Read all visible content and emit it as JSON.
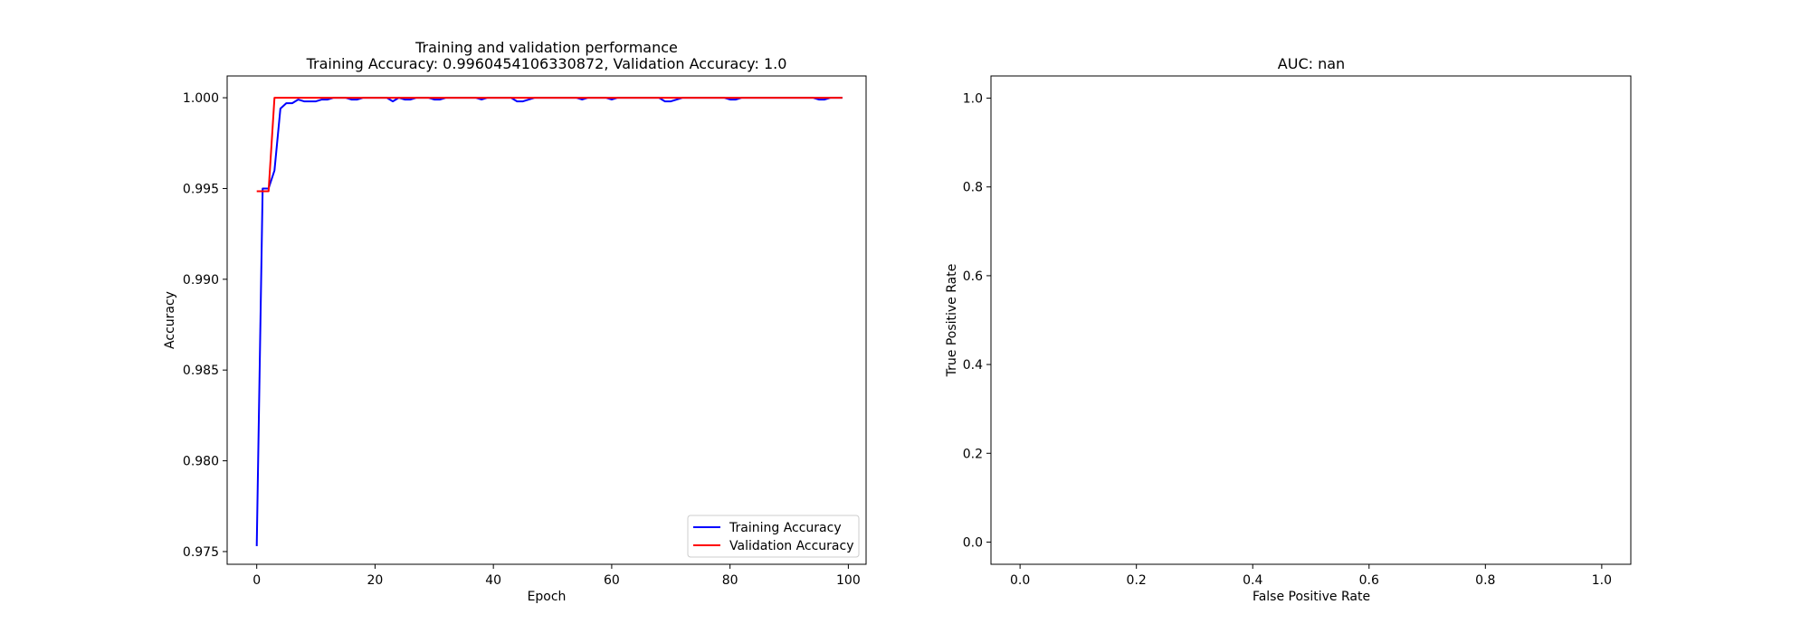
{
  "chart_data": [
    {
      "type": "line",
      "title": "Training and validation performance",
      "subtitle": "Training Accuracy: 0.9960454106330872, Validation Accuracy: 1.0",
      "xlabel": "Epoch",
      "ylabel": "Accuracy",
      "xlim": [
        -5,
        103
      ],
      "ylim": [
        0.9743,
        1.0012
      ],
      "xticks": [
        0,
        20,
        40,
        60,
        80,
        100
      ],
      "xtick_labels": [
        "0",
        "20",
        "40",
        "60",
        "80",
        "100"
      ],
      "yticks": [
        0.975,
        0.98,
        0.985,
        0.99,
        0.995,
        1.0
      ],
      "ytick_labels": [
        "0.975",
        "0.980",
        "0.985",
        "0.990",
        "0.995",
        "1.000"
      ],
      "grid": false,
      "legend_position": "lower-right",
      "series": [
        {
          "name": "Training Accuracy",
          "color": "#0000ff",
          "x": [
            0,
            1,
            2,
            3,
            4,
            5,
            6,
            7,
            8,
            9,
            10,
            11,
            12,
            13,
            14,
            15,
            16,
            17,
            18,
            19,
            20,
            21,
            22,
            23,
            24,
            25,
            26,
            27,
            28,
            29,
            30,
            31,
            32,
            33,
            34,
            35,
            36,
            37,
            38,
            39,
            40,
            41,
            42,
            43,
            44,
            45,
            46,
            47,
            48,
            49,
            50,
            51,
            52,
            53,
            54,
            55,
            56,
            57,
            58,
            59,
            60,
            61,
            62,
            63,
            64,
            65,
            66,
            67,
            68,
            69,
            70,
            71,
            72,
            73,
            74,
            75,
            76,
            77,
            78,
            79,
            80,
            81,
            82,
            83,
            84,
            85,
            86,
            87,
            88,
            89,
            90,
            91,
            92,
            93,
            94,
            95,
            96,
            97,
            98,
            99
          ],
          "y": [
            0.9753,
            0.995,
            0.995,
            0.996,
            0.9994,
            0.9997,
            0.9997,
            0.9999,
            0.9998,
            0.9998,
            0.9998,
            0.9999,
            0.9999,
            1.0,
            1.0,
            1.0,
            0.9999,
            0.9999,
            1.0,
            1.0,
            1.0,
            1.0,
            1.0,
            0.9998,
            1.0,
            0.9999,
            0.9999,
            1.0,
            1.0,
            1.0,
            0.9999,
            0.9999,
            1.0,
            1.0,
            1.0,
            1.0,
            1.0,
            1.0,
            0.9999,
            1.0,
            1.0,
            1.0,
            1.0,
            1.0,
            0.9998,
            0.9998,
            0.9999,
            1.0,
            1.0,
            1.0,
            1.0,
            1.0,
            1.0,
            1.0,
            1.0,
            0.9999,
            1.0,
            1.0,
            1.0,
            1.0,
            0.9999,
            1.0,
            1.0,
            1.0,
            1.0,
            1.0,
            1.0,
            1.0,
            1.0,
            0.9998,
            0.9998,
            0.9999,
            1.0,
            1.0,
            1.0,
            1.0,
            1.0,
            1.0,
            1.0,
            1.0,
            0.9999,
            0.9999,
            1.0,
            1.0,
            1.0,
            1.0,
            1.0,
            1.0,
            1.0,
            1.0,
            1.0,
            1.0,
            1.0,
            1.0,
            1.0,
            0.9999,
            0.9999,
            1.0,
            1.0,
            1.0
          ]
        },
        {
          "name": "Validation Accuracy",
          "color": "#ff0000",
          "x": [
            0,
            1,
            2,
            3,
            4,
            5,
            6,
            7,
            8,
            9,
            10,
            11,
            12,
            13,
            14,
            15,
            16,
            17,
            18,
            19,
            20,
            21,
            22,
            23,
            24,
            25,
            26,
            27,
            28,
            29,
            30,
            31,
            32,
            33,
            34,
            35,
            36,
            37,
            38,
            39,
            40,
            41,
            42,
            43,
            44,
            45,
            46,
            47,
            48,
            49,
            50,
            51,
            52,
            53,
            54,
            55,
            56,
            57,
            58,
            59,
            60,
            61,
            62,
            63,
            64,
            65,
            66,
            67,
            68,
            69,
            70,
            71,
            72,
            73,
            74,
            75,
            76,
            77,
            78,
            79,
            80,
            81,
            82,
            83,
            84,
            85,
            86,
            87,
            88,
            89,
            90,
            91,
            92,
            93,
            94,
            95,
            96,
            97,
            98,
            99
          ],
          "y": [
            0.99485,
            0.99485,
            0.99485,
            1.0,
            1.0,
            1.0,
            1.0,
            1.0,
            1.0,
            1.0,
            1.0,
            1.0,
            1.0,
            1.0,
            1.0,
            1.0,
            1.0,
            1.0,
            1.0,
            1.0,
            1.0,
            1.0,
            1.0,
            1.0,
            1.0,
            1.0,
            1.0,
            1.0,
            1.0,
            1.0,
            1.0,
            1.0,
            1.0,
            1.0,
            1.0,
            1.0,
            1.0,
            1.0,
            1.0,
            1.0,
            1.0,
            1.0,
            1.0,
            1.0,
            1.0,
            1.0,
            1.0,
            1.0,
            1.0,
            1.0,
            1.0,
            1.0,
            1.0,
            1.0,
            1.0,
            1.0,
            1.0,
            1.0,
            1.0,
            1.0,
            1.0,
            1.0,
            1.0,
            1.0,
            1.0,
            1.0,
            1.0,
            1.0,
            1.0,
            1.0,
            1.0,
            1.0,
            1.0,
            1.0,
            1.0,
            1.0,
            1.0,
            1.0,
            1.0,
            1.0,
            1.0,
            1.0,
            1.0,
            1.0,
            1.0,
            1.0,
            1.0,
            1.0,
            1.0,
            1.0,
            1.0,
            1.0,
            1.0,
            1.0,
            1.0,
            1.0,
            1.0,
            1.0,
            1.0,
            1.0
          ]
        }
      ]
    },
    {
      "type": "line",
      "title": "AUC: nan",
      "xlabel": "False Positive Rate",
      "ylabel": "True Positive Rate",
      "xlim": [
        -0.05,
        1.05
      ],
      "ylim": [
        -0.05,
        1.05
      ],
      "xticks": [
        0,
        0.2,
        0.4,
        0.6,
        0.8,
        1.0
      ],
      "xtick_labels": [
        "0.0",
        "0.2",
        "0.4",
        "0.6",
        "0.8",
        "1.0"
      ],
      "yticks": [
        0,
        0.2,
        0.4,
        0.6,
        0.8,
        1.0
      ],
      "ytick_labels": [
        "0.0",
        "0.2",
        "0.4",
        "0.6",
        "0.8",
        "1.0"
      ],
      "grid": false,
      "series": []
    }
  ]
}
